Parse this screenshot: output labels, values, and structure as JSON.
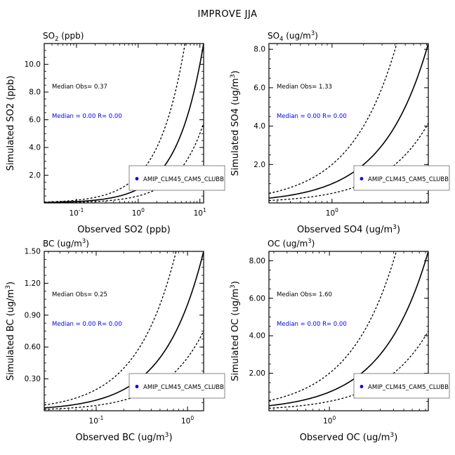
{
  "figure_title": "IMPROVE JJA",
  "chart_data": [
    {
      "type": "scatter",
      "title": "SO",
      "title_sub": "2",
      "title_unit": " (ppb)",
      "xlabel": "Observed SO2 (ppb)",
      "ylabel": "Simulated SO2 (ppb)",
      "xscale": "log",
      "xlim": [
        0.03,
        11.5
      ],
      "ylim": [
        0,
        11.5
      ],
      "x_ticks": [
        {
          "value": 0.1,
          "base": "10",
          "exp": "-1"
        },
        {
          "value": 1,
          "base": "10",
          "exp": "0"
        },
        {
          "value": 10,
          "base": "10",
          "exp": "1"
        }
      ],
      "y_ticks": [
        {
          "value": 2,
          "label": "2.0"
        },
        {
          "value": 4,
          "label": "4.0"
        },
        {
          "value": 6,
          "label": "6.0"
        },
        {
          "value": 8,
          "label": "8.0"
        },
        {
          "value": 10,
          "label": "10.0"
        }
      ],
      "reference_lines": [
        {
          "name": "1:1",
          "slope": 1,
          "style": "solid"
        },
        {
          "name": "2:1",
          "slope": 2,
          "style": "dashed"
        },
        {
          "name": "1:2",
          "slope": 0.5,
          "style": "dashed"
        }
      ],
      "median_obs_text": "Median Obs= 0.37",
      "model_median_text": "Median = 0.00 R= 0.00",
      "legend": {
        "entries": [
          "AMIP_CLM45_CAM5_CLUBB"
        ],
        "placement": "bottom-right",
        "color": "#0000ee"
      },
      "series": [
        {
          "name": "AMIP_CLM45_CAM5_CLUBB",
          "points": []
        }
      ]
    },
    {
      "type": "scatter",
      "title": "SO",
      "title_sub": "4",
      "title_unit": " (ug/m",
      "title_unit_sup": "3",
      "title_unit_end": ")",
      "xlabel": "Observed SO4 (ug/m",
      "xlabel_sup": "3",
      "xlabel_end": ")",
      "ylabel": "Simulated SO4 (ug/m",
      "ylabel_sup": "3",
      "ylabel_end": ")",
      "xscale": "log",
      "xlim": [
        0.25,
        8.3
      ],
      "ylim": [
        0,
        8.3
      ],
      "x_ticks": [
        {
          "value": 1,
          "base": "10",
          "exp": "0"
        }
      ],
      "y_ticks": [
        {
          "value": 2,
          "label": "2.0"
        },
        {
          "value": 4,
          "label": "4.0"
        },
        {
          "value": 6,
          "label": "6.0"
        },
        {
          "value": 8,
          "label": "8.0"
        }
      ],
      "reference_lines": [
        {
          "name": "1:1",
          "slope": 1,
          "style": "solid"
        },
        {
          "name": "2:1",
          "slope": 2,
          "style": "dashed"
        },
        {
          "name": "1:2",
          "slope": 0.5,
          "style": "dashed"
        }
      ],
      "median_obs_text": "Median Obs= 1.33",
      "model_median_text": "Median = 0.00 R= 0.00",
      "legend": {
        "entries": [
          "AMIP_CLM45_CAM5_CLUBB"
        ],
        "placement": "bottom-right",
        "color": "#0000ee"
      },
      "series": [
        {
          "name": "AMIP_CLM45_CAM5_CLUBB",
          "points": []
        }
      ]
    },
    {
      "type": "scatter",
      "title": "BC",
      "title_unit": " (ug/m",
      "title_unit_sup": "3",
      "title_unit_end": ")",
      "xlabel": "Observed BC (ug/m",
      "xlabel_sup": "3",
      "xlabel_end": ")",
      "ylabel": "Simulated BC (ug/m",
      "ylabel_sup": "3",
      "ylabel_end": ")",
      "xscale": "log",
      "xlim": [
        0.027,
        1.5
      ],
      "ylim": [
        0,
        1.5
      ],
      "x_ticks": [
        {
          "value": 0.1,
          "base": "10",
          "exp": "-1"
        },
        {
          "value": 1,
          "base": "10",
          "exp": "0"
        }
      ],
      "y_ticks": [
        {
          "value": 0.3,
          "label": "0.30"
        },
        {
          "value": 0.6,
          "label": "0.60"
        },
        {
          "value": 0.9,
          "label": "0.90"
        },
        {
          "value": 1.2,
          "label": "1.20"
        },
        {
          "value": 1.5,
          "label": "1.50"
        }
      ],
      "reference_lines": [
        {
          "name": "1:1",
          "slope": 1,
          "style": "solid"
        },
        {
          "name": "2:1",
          "slope": 2,
          "style": "dashed"
        },
        {
          "name": "1:2",
          "slope": 0.5,
          "style": "dashed"
        }
      ],
      "median_obs_text": "Median Obs= 0.25",
      "model_median_text": "Median = 0.00 R= 0.00",
      "legend": {
        "entries": [
          "AMIP_CLM45_CAM5_CLUBB"
        ],
        "placement": "bottom-right",
        "color": "#0000ee"
      },
      "series": [
        {
          "name": "AMIP_CLM45_CAM5_CLUBB",
          "points": []
        }
      ]
    },
    {
      "type": "scatter",
      "title": "OC",
      "title_unit": " (ug/m",
      "title_unit_sup": "3",
      "title_unit_end": ")",
      "xlabel": "Observed OC (ug/m",
      "xlabel_sup": "3",
      "xlabel_end": ")",
      "ylabel": "Simulated OC (ug/m",
      "ylabel_sup": "3",
      "ylabel_end": ")",
      "xscale": "log",
      "xlim": [
        0.27,
        8.5
      ],
      "ylim": [
        0,
        8.5
      ],
      "x_ticks": [
        {
          "value": 1,
          "base": "10",
          "exp": "0"
        }
      ],
      "y_ticks": [
        {
          "value": 2,
          "label": "2.00"
        },
        {
          "value": 4,
          "label": "4.00"
        },
        {
          "value": 6,
          "label": "6.00"
        },
        {
          "value": 8,
          "label": "8.00"
        }
      ],
      "reference_lines": [
        {
          "name": "1:1",
          "slope": 1,
          "style": "solid"
        },
        {
          "name": "2:1",
          "slope": 2,
          "style": "dashed"
        },
        {
          "name": "1:2",
          "slope": 0.5,
          "style": "dashed"
        }
      ],
      "median_obs_text": "Median Obs= 1.60",
      "model_median_text": "Median = 0.00 R= 0.00",
      "legend": {
        "entries": [
          "AMIP_CLM45_CAM5_CLUBB"
        ],
        "placement": "bottom-right",
        "color": "#0000ee"
      },
      "series": [
        {
          "name": "AMIP_CLM45_CAM5_CLUBB",
          "points": []
        }
      ]
    }
  ]
}
